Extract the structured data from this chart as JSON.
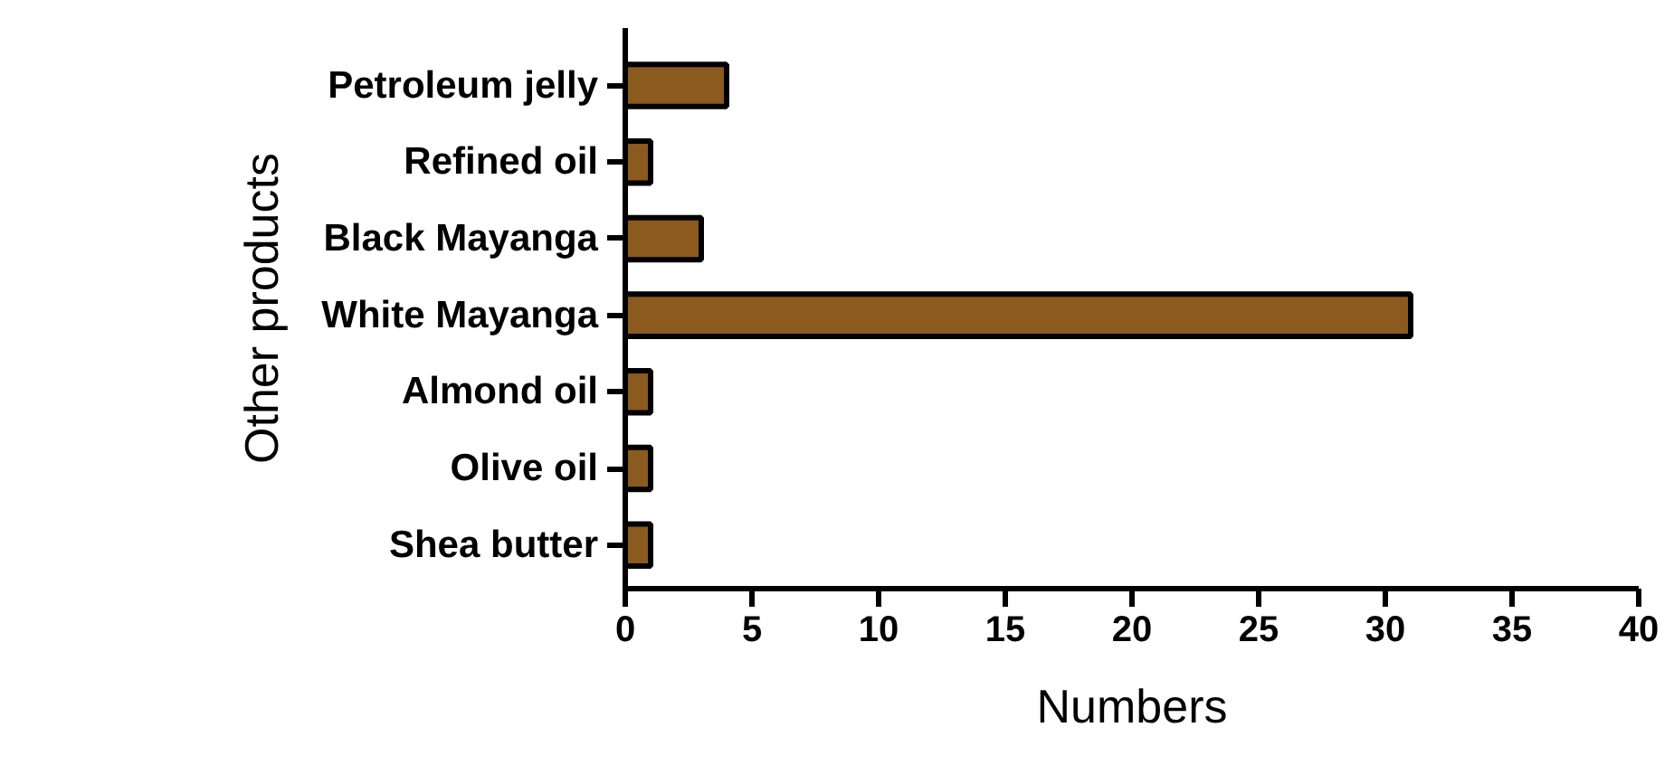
{
  "chart_data": {
    "type": "bar",
    "orientation": "horizontal",
    "xlabel": "Numbers",
    "ylabel": "Other products",
    "categories": [
      "Petroleum jelly",
      "Refined oil",
      "Black Mayanga",
      "White Mayanga",
      "Almond oil",
      "Olive oil",
      "Shea butter"
    ],
    "values": [
      4,
      1,
      3,
      31,
      1,
      1,
      1
    ],
    "color": "#8b5a1e",
    "xlim": [
      0,
      40
    ],
    "xticks": [
      0,
      5,
      10,
      15,
      20,
      25,
      30,
      35,
      40
    ],
    "grid": false
  }
}
